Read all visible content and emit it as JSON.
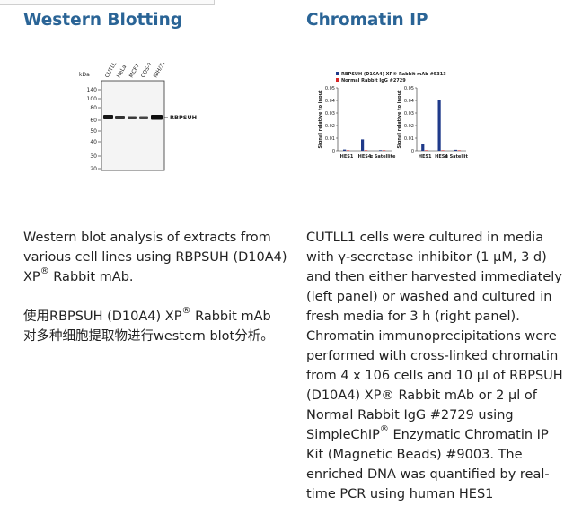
{
  "western": {
    "heading": "Western Blotting",
    "blot": {
      "kda_label": "kDa",
      "markers": [
        "140",
        "100",
        "80",
        "60",
        "50",
        "40",
        "30",
        "20"
      ],
      "lanes": [
        "CUTLL1",
        "HeLa",
        "MCF7",
        "COS-7",
        "NIH/3T3"
      ],
      "band_label": "RBPSUH"
    },
    "description": "Western blot analysis of extracts from various cell lines using RBPSUH (D10A4) XP",
    "description_tail": " Rabbit mAb.",
    "chinese_pre": "使用RBPSUH (D10A4) XP",
    "chinese_post": " Rabbit mAb对多种细胞提取物进行western blot分析。",
    "reg": "®"
  },
  "chip": {
    "heading": "Chromatin IP",
    "legend": [
      {
        "label": "RBPSUH (D10A4) XP® Rabbit mAb #5313",
        "color": "#1f3a8a"
      },
      {
        "label": "Normal Rabbit IgG #2729",
        "color": "#d62728"
      }
    ],
    "ylabel": "Signal relative to input",
    "description_pre": "CUTLL1 cells were cultured in media with γ-secretase inhibitor (1 μM, 3 d) and then either harvested immediately (left panel) or washed and cultured in fresh media for 3 h (right panel). Chromatin immunoprecipitations were performed with cross-linked chromatin from 4 x 106 cells and 10 μl of RBPSUH (D10A4) XP® Rabbit mAb or 2 μl of Normal Rabbit IgG #2729 using SimpleChIP",
    "reg": "®",
    "description_post": " Enzymatic Chromatin IP Kit (Magnetic Beads) #9003. The enriched DNA was quantified by real-time PCR using human HES1"
  },
  "chart_data": [
    {
      "type": "bar",
      "categories": [
        "HES1",
        "HES4",
        "α Satellite"
      ],
      "series": [
        {
          "name": "RBPSUH (D10A4) XP® Rabbit mAb #5313",
          "values": [
            0.001,
            0.009,
            0.0005
          ]
        },
        {
          "name": "Normal Rabbit IgG #2729",
          "values": [
            0.0003,
            0.0003,
            0.0003
          ]
        }
      ],
      "yticks": [
        "0",
        "0.01",
        "0.02",
        "0.03",
        "0.04",
        "0.05"
      ],
      "ylabel": "Signal relative to input",
      "ylim": [
        0,
        0.05
      ]
    },
    {
      "type": "bar",
      "categories": [
        "HES1",
        "HES4",
        "α Satellite"
      ],
      "series": [
        {
          "name": "RBPSUH (D10A4) XP® Rabbit mAb #5313",
          "values": [
            0.005,
            0.04,
            0.0008
          ]
        },
        {
          "name": "Normal Rabbit IgG #2729",
          "values": [
            0.0003,
            0.0003,
            0.0003
          ]
        }
      ],
      "yticks": [
        "0",
        "0.01",
        "0.02",
        "0.03",
        "0.04",
        "0.05"
      ],
      "ylabel": "Signal relative to input",
      "ylim": [
        0,
        0.05
      ]
    }
  ]
}
